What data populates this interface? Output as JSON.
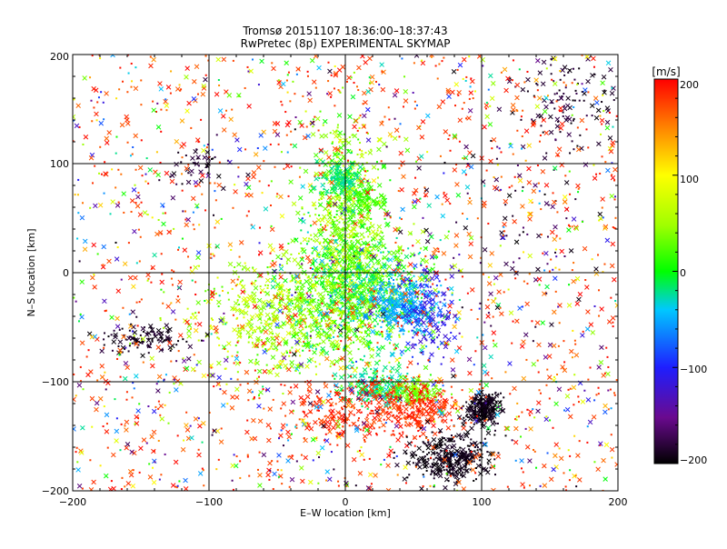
{
  "chart_data": {
    "type": "scatter",
    "title": "Tromsø 20151107 18:36:00–18:37:43",
    "subtitle": "RwPretec (8p) EXPERIMENTAL SKYMAP",
    "xlabel": "E–W location [km]",
    "ylabel": "N–S location [km]",
    "xlim": [
      -200,
      200
    ],
    "ylim": [
      -200,
      200
    ],
    "xticks": [
      "−200",
      "−100",
      "0",
      "100",
      "200"
    ],
    "yticks": [
      "−200",
      "−100",
      "0",
      "100",
      "200"
    ],
    "grid": true,
    "colorbar": {
      "label": "[m/s]",
      "range": [
        -200,
        200
      ],
      "ticks": [
        "200",
        "100",
        "0",
        "−100",
        "−200"
      ],
      "colormap": "black-purple-blue-cyan-green-yellow-orange-red"
    },
    "markers": [
      "cross (×)",
      "dot (•)"
    ],
    "clusters": [
      {
        "name": "central-north-column",
        "x": 0,
        "y": 40,
        "sx": 15,
        "sy": 50,
        "n": 700,
        "vel": [
          0,
          80
        ]
      },
      {
        "name": "central-column",
        "x": 10,
        "y": -20,
        "sx": 25,
        "sy": 30,
        "n": 900,
        "vel": [
          -40,
          60
        ]
      },
      {
        "name": "cyan-top-patch",
        "x": -3,
        "y": 85,
        "sx": 8,
        "sy": 8,
        "n": 120,
        "vel": [
          -30,
          -10
        ]
      },
      {
        "name": "green-patch",
        "x": 15,
        "y": 65,
        "sx": 8,
        "sy": 8,
        "n": 80,
        "vel": [
          10,
          30
        ]
      },
      {
        "name": "cyan-east-blob",
        "x": 40,
        "y": -30,
        "sx": 12,
        "sy": 15,
        "n": 280,
        "vel": [
          -70,
          -30
        ]
      },
      {
        "name": "blue-east-band",
        "x": 60,
        "y": -40,
        "sx": 10,
        "sy": 25,
        "n": 150,
        "vel": [
          -130,
          -80
        ]
      },
      {
        "name": "west-green",
        "x": -50,
        "y": -40,
        "sx": 30,
        "sy": 25,
        "n": 450,
        "vel": [
          20,
          90
        ]
      },
      {
        "name": "south-cyan-patch",
        "x": 25,
        "y": -105,
        "sx": 12,
        "sy": 8,
        "n": 180,
        "vel": [
          -40,
          0
        ]
      },
      {
        "name": "south-green-patch",
        "x": 50,
        "y": -110,
        "sx": 10,
        "sy": 6,
        "n": 120,
        "vel": [
          20,
          60
        ]
      },
      {
        "name": "red-south",
        "x": 10,
        "y": -125,
        "sx": 30,
        "sy": 15,
        "n": 320,
        "vel": [
          170,
          200
        ]
      },
      {
        "name": "red-south-east",
        "x": 60,
        "y": -125,
        "sx": 10,
        "sy": 10,
        "n": 120,
        "vel": [
          170,
          200
        ]
      },
      {
        "name": "black-south-a",
        "x": 102,
        "y": -125,
        "sx": 7,
        "sy": 8,
        "n": 240,
        "vel": [
          -200,
          -190
        ]
      },
      {
        "name": "black-south-b",
        "x": 78,
        "y": -170,
        "sx": 14,
        "sy": 12,
        "n": 320,
        "vel": [
          -200,
          -190
        ]
      },
      {
        "name": "black-west-arc",
        "x": -145,
        "y": -62,
        "sx": 15,
        "sy": 6,
        "n": 110,
        "vel": [
          -200,
          -185
        ]
      },
      {
        "name": "black-top-right",
        "x": 165,
        "y": 160,
        "sx": 20,
        "sy": 25,
        "n": 120,
        "vel": [
          -200,
          -180
        ]
      },
      {
        "name": "black-nw",
        "x": -110,
        "y": 100,
        "sx": 10,
        "sy": 10,
        "n": 40,
        "vel": [
          -200,
          -180
        ]
      },
      {
        "name": "black-far-right",
        "x": 140,
        "y": 30,
        "sx": 30,
        "sy": 50,
        "n": 60,
        "vel": [
          -200,
          -170
        ]
      },
      {
        "name": "background-red",
        "x": 0,
        "y": 0,
        "sx": 140,
        "sy": 140,
        "n": 1000,
        "vel": [
          160,
          200
        ]
      },
      {
        "name": "background-mixed",
        "x": 0,
        "y": 0,
        "sx": 130,
        "sy": 130,
        "n": 1000,
        "vel": [
          -200,
          200
        ]
      }
    ]
  }
}
